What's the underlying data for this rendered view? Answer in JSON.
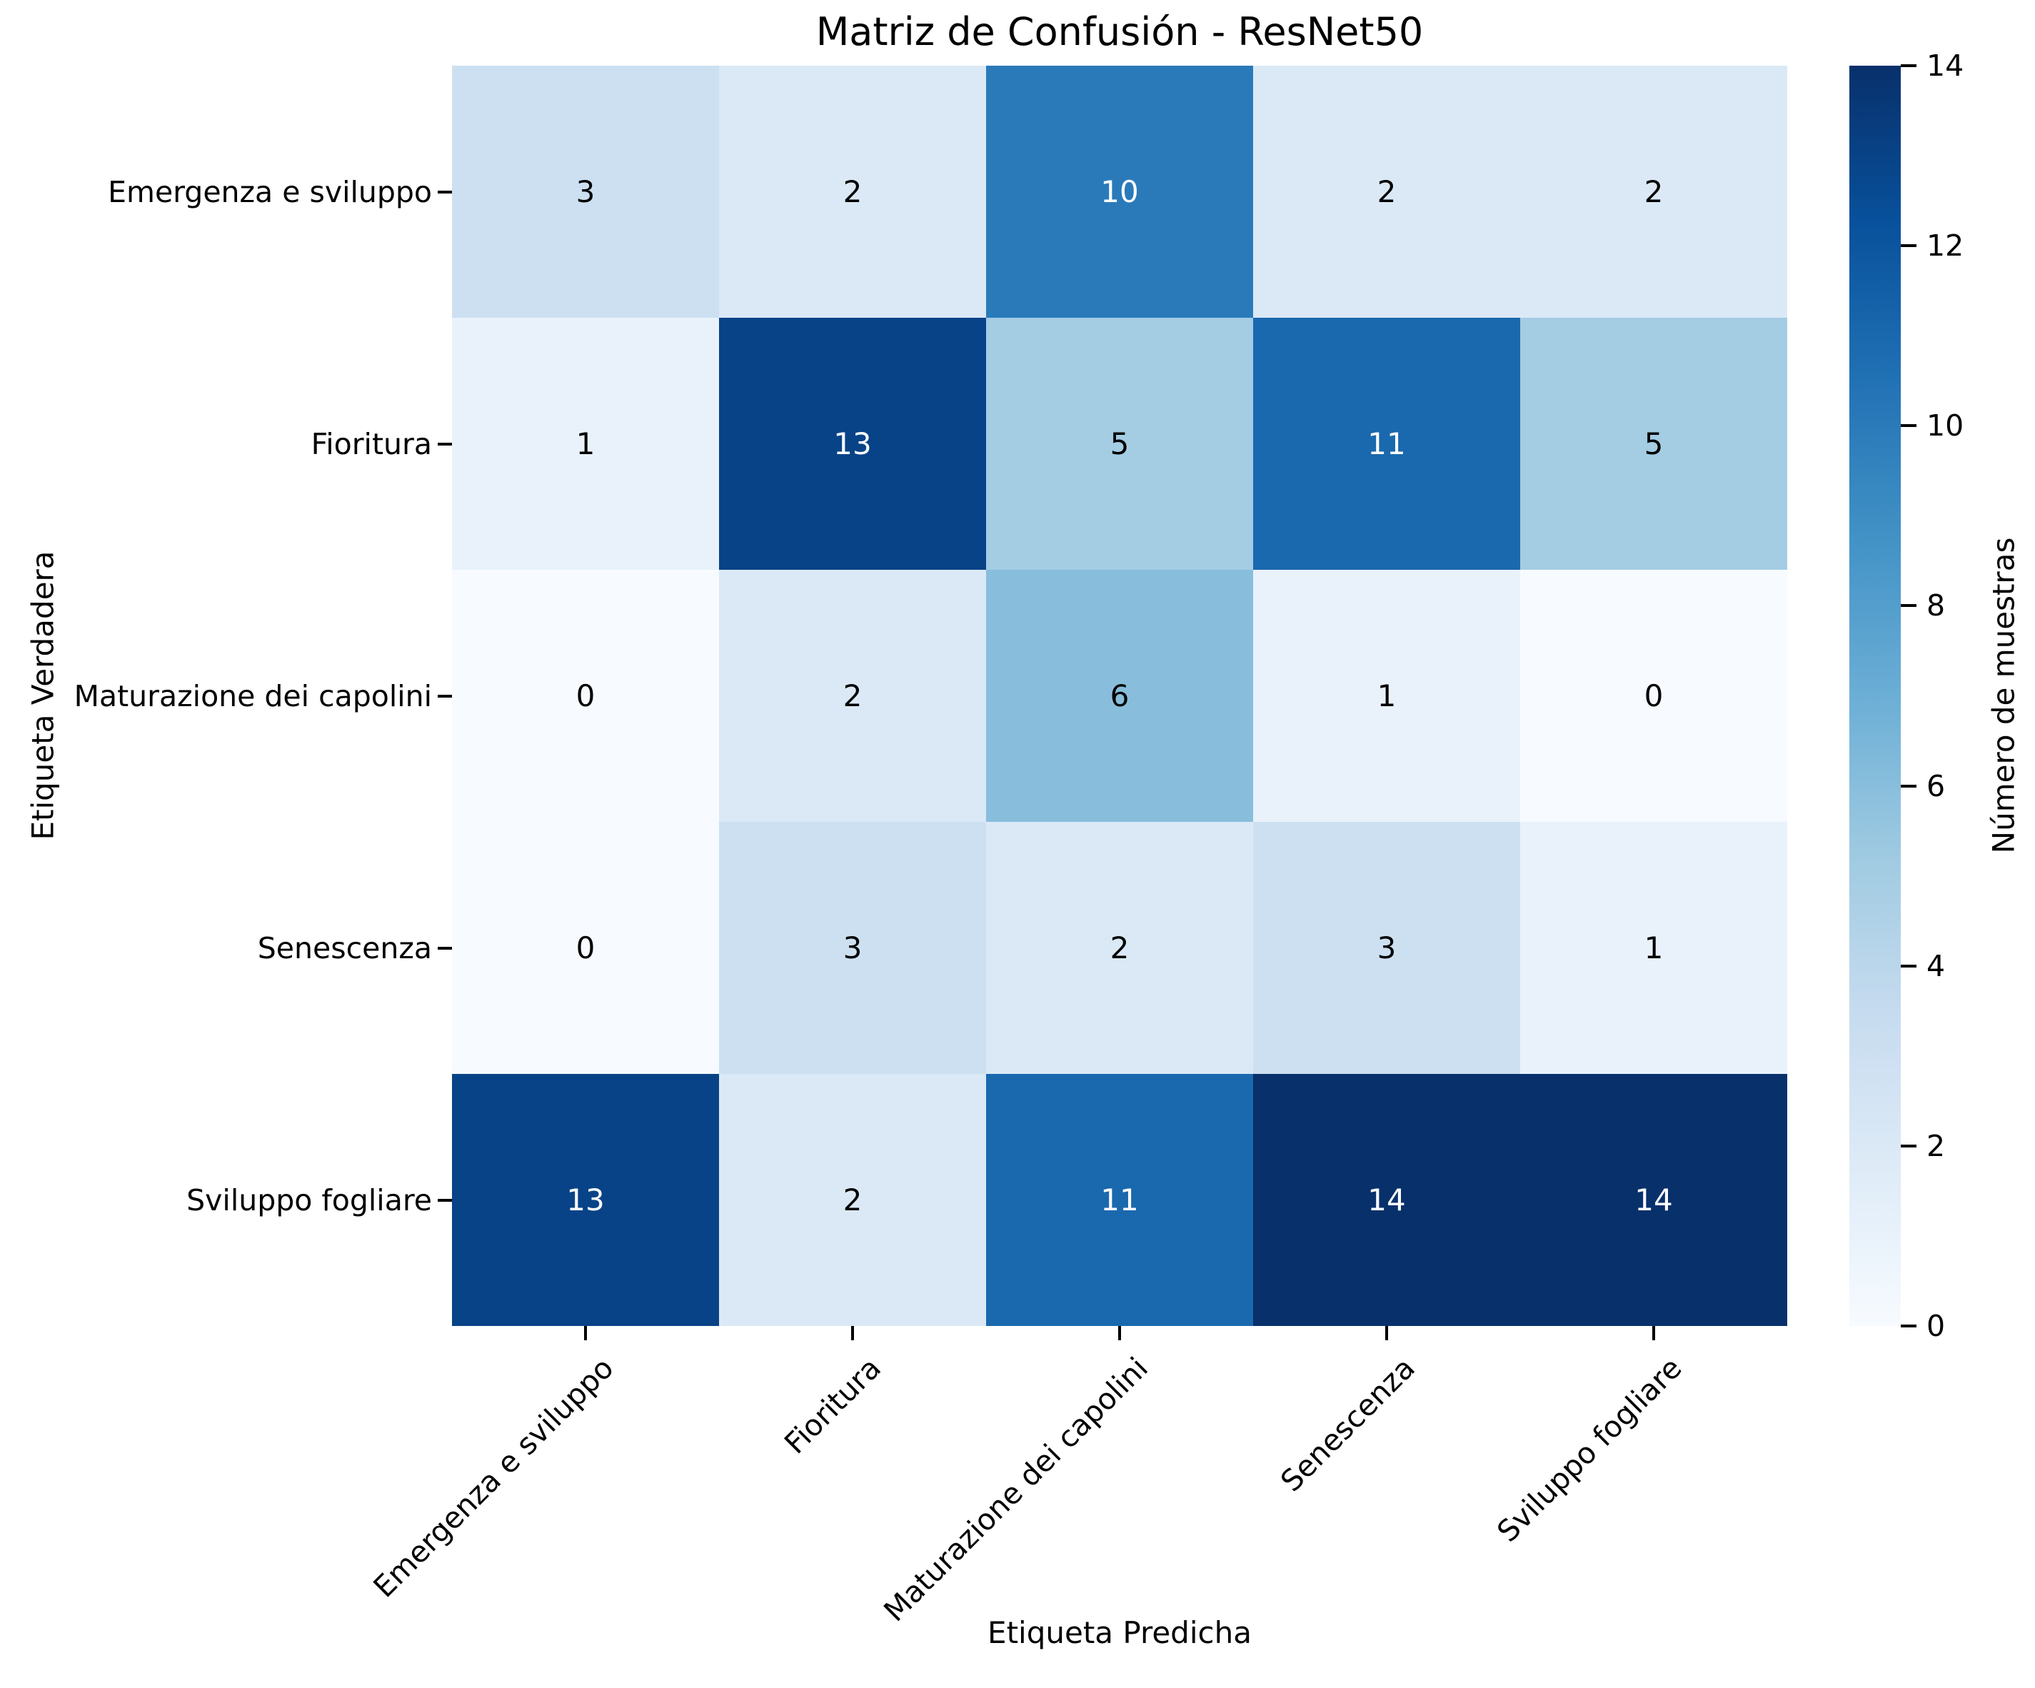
{
  "title": "Matriz de Confusión - ResNet50",
  "axes": {
    "x_label": "Etiqueta Predicha",
    "y_label": "Etiqueta Verdadera"
  },
  "chart_data": {
    "type": "heatmap",
    "title": "Matriz de Confusión - ResNet50",
    "xlabel": "Etiqueta Predicha",
    "ylabel": "Etiqueta Verdadera",
    "x_categories": [
      "Emergenza e sviluppo",
      "Fioritura",
      "Maturazione dei capolini",
      "Senescenza",
      "Sviluppo fogliare"
    ],
    "y_categories": [
      "Emergenza e sviluppo",
      "Fioritura",
      "Maturazione dei capolini",
      "Senescenza",
      "Sviluppo fogliare"
    ],
    "matrix": [
      [
        3,
        2,
        10,
        2,
        2
      ],
      [
        1,
        13,
        5,
        11,
        5
      ],
      [
        0,
        2,
        6,
        1,
        0
      ],
      [
        0,
        3,
        2,
        3,
        1
      ],
      [
        13,
        2,
        11,
        14,
        14
      ]
    ],
    "grid": false,
    "legend_position": "right-colorbar",
    "colorbar": {
      "label": "Número de muestras",
      "vmin": 0,
      "vmax": 14,
      "ticks": [
        0,
        2,
        4,
        6,
        8,
        10,
        12,
        14
      ],
      "colormap": "Blues",
      "colormap_stops": [
        "#f7fbff",
        "#deebf7",
        "#c6dbef",
        "#9ecae1",
        "#6baed6",
        "#4292c6",
        "#2171b5",
        "#08519c",
        "#08306b"
      ]
    },
    "annotation_colors": {
      "on_light": "#000000",
      "on_dark": "#ffffff"
    }
  }
}
